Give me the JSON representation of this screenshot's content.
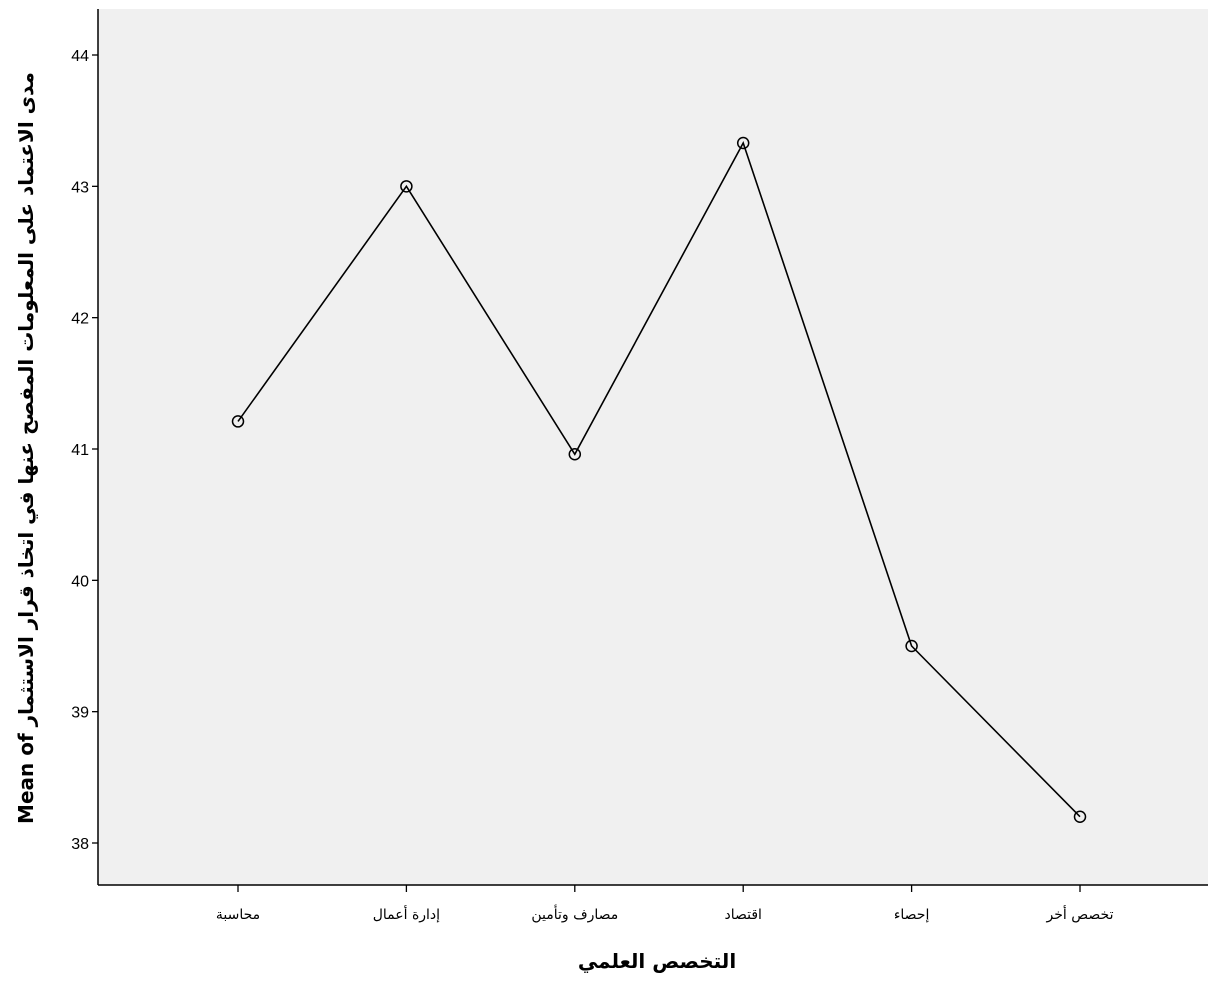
{
  "chart_data": {
    "type": "line",
    "xlabel": "التخصص العلمي",
    "ylabel": "Mean of مدى الاعتماد على المعلومات المفصح عنها في اتخاذ قرار الاستثمار",
    "categories": [
      "محاسبة",
      "إدارة أعمال",
      "مصارف وتأمين",
      "اقتصاد",
      "إحصاء",
      "تخصص أخر"
    ],
    "values": [
      41.21,
      43.0,
      40.96,
      43.33,
      39.5,
      38.2
    ],
    "yticks": [
      38,
      39,
      40,
      41,
      42,
      43,
      44
    ],
    "ylim": [
      37.68,
      44.3
    ],
    "grid": false,
    "marker": "open-circle",
    "colors": {
      "plot_background": "#f0f0f0",
      "line": "#000000",
      "axis": "#000000"
    }
  }
}
